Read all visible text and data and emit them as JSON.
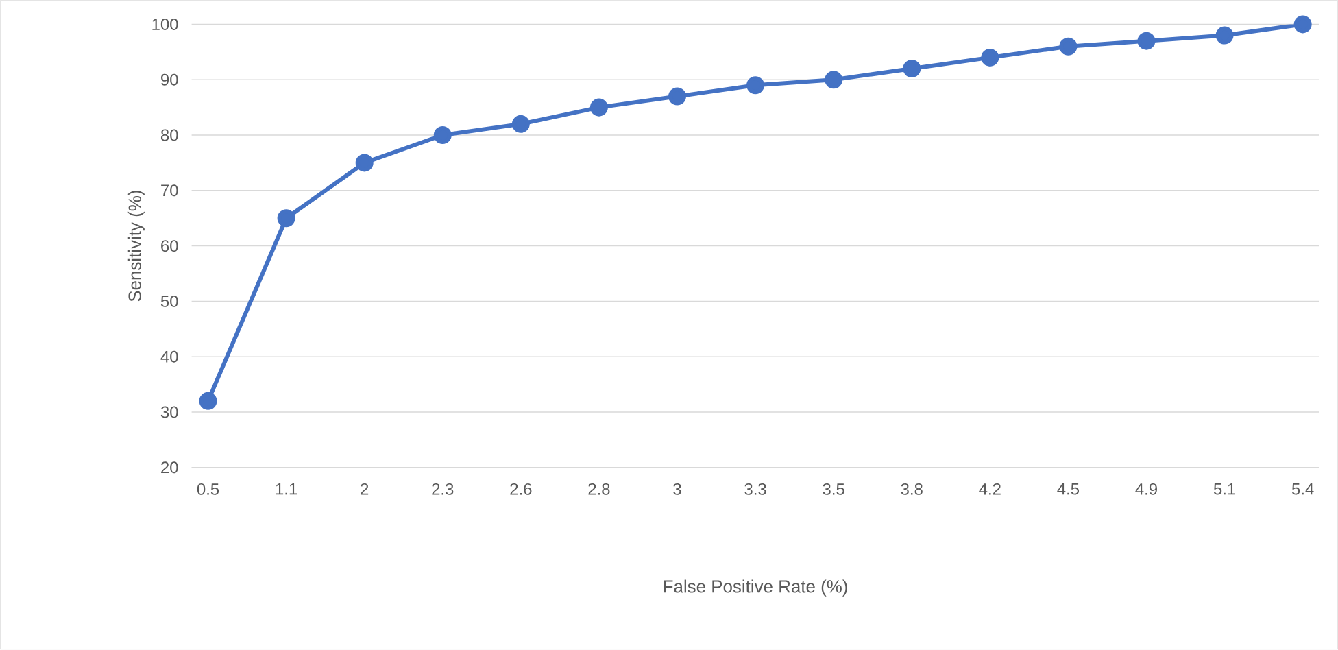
{
  "chart_data": {
    "type": "line",
    "xlabel": "False Positive Rate (%)",
    "ylabel": "Sensitivity (%)",
    "categories": [
      "0.5",
      "1.1",
      "2",
      "2.3",
      "2.6",
      "2.8",
      "3",
      "3.3",
      "3.5",
      "3.8",
      "4.2",
      "4.5",
      "4.9",
      "5.1",
      "5.4"
    ],
    "values": [
      32,
      65,
      75,
      80,
      82,
      85,
      87,
      89,
      90,
      92,
      94,
      96,
      97,
      98,
      100
    ],
    "color": "#4472c4",
    "ylim": [
      20,
      100
    ],
    "yticks": [
      20,
      30,
      40,
      50,
      60,
      70,
      80,
      90,
      100
    ],
    "grid": "y",
    "marker": "circle"
  }
}
